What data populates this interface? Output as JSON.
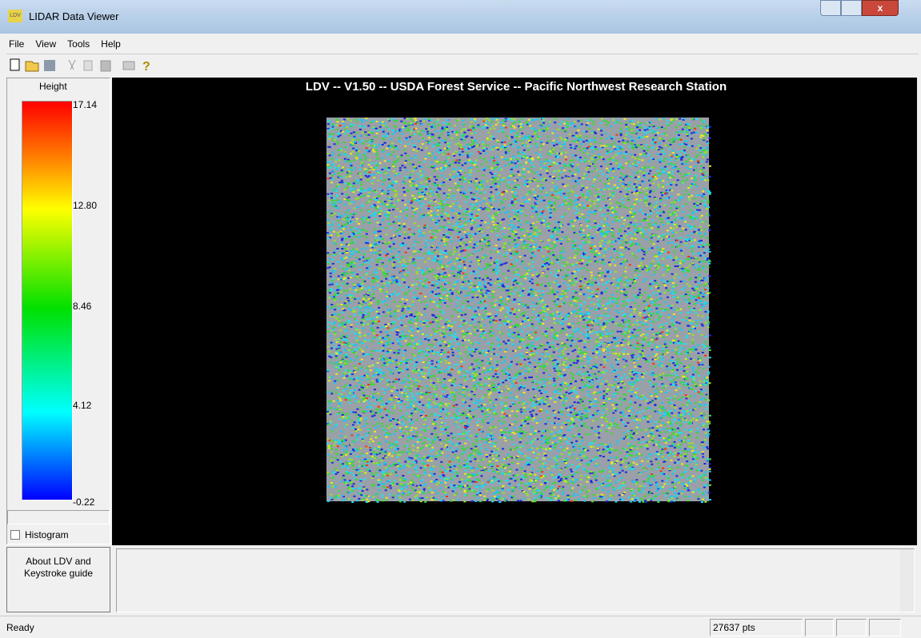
{
  "window": {
    "icon": "LDV",
    "title": "LIDAR Data Viewer"
  },
  "menu": [
    "File",
    "View",
    "Tools",
    "Help"
  ],
  "legend": {
    "title": "Height",
    "labels": [
      "17.14",
      "12.80",
      "8.46",
      "4.12",
      "-0.22"
    ],
    "histogram": "Histogram"
  },
  "view": {
    "header": "LDV -- V1.50 -- USDA Forest Service -- Pacific Northwest Research Station"
  },
  "about_button": "About LDV and Keystroke guide",
  "status": {
    "text": "Ready",
    "points": "27637 pts"
  }
}
